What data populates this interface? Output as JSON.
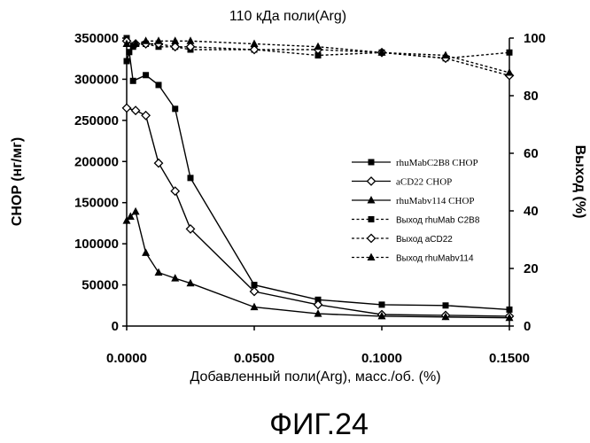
{
  "chart_data": {
    "type": "line",
    "title": "110 кДа поли(Arg)",
    "xlabel": "Добавленный поли(Arg), масс./об. (%)",
    "ylabel_left": "CHOP (нг/мг)",
    "ylabel_right": "Выход (%)",
    "xlim": [
      0,
      0.15
    ],
    "ylim_left": [
      0,
      350000
    ],
    "ylim_right": [
      0,
      100
    ],
    "x_ticks": [
      "0.0000",
      "0.0500",
      "0.1000",
      "0.1500"
    ],
    "y_left_ticks": [
      "0",
      "50000",
      "100000",
      "150000",
      "200000",
      "250000",
      "300000",
      "350000"
    ],
    "y_right_ticks": [
      "0",
      "20",
      "40",
      "60",
      "80",
      "100"
    ],
    "legend_position": "right",
    "grid": false,
    "series": [
      {
        "name": "rhuMabC2B8 CHOP",
        "axis": "left",
        "marker": "square",
        "line": "solid",
        "x": [
          0,
          0.001,
          0.0025,
          0.0075,
          0.0125,
          0.019,
          0.025,
          0.05,
          0.075,
          0.1,
          0.125,
          0.15
        ],
        "y": [
          322000,
          333000,
          298000,
          305000,
          293000,
          264000,
          180000,
          50000,
          32000,
          26000,
          25000,
          20000
        ]
      },
      {
        "name": "aCD22 CHOP",
        "axis": "left",
        "marker": "diamond",
        "line": "solid",
        "x": [
          0,
          0.0035,
          0.0075,
          0.0125,
          0.019,
          0.025,
          0.05,
          0.075,
          0.1,
          0.125,
          0.15
        ],
        "y": [
          265000,
          262000,
          256000,
          198000,
          164000,
          118000,
          42000,
          26000,
          14000,
          13000,
          12000
        ]
      },
      {
        "name": "rhuMabv114 CHOP",
        "axis": "left",
        "marker": "triangle",
        "line": "solid",
        "x": [
          0,
          0.0015,
          0.0035,
          0.0075,
          0.0125,
          0.019,
          0.025,
          0.05,
          0.075,
          0.1,
          0.125,
          0.15
        ],
        "y": [
          128000,
          133000,
          139000,
          89000,
          65000,
          58000,
          52000,
          23000,
          15000,
          12000,
          11000,
          10000
        ]
      },
      {
        "name": "Выход rhuMab C2B8",
        "axis": "right",
        "marker": "square",
        "line": "dashed",
        "x": [
          0,
          0.0025,
          0.0075,
          0.0125,
          0.019,
          0.025,
          0.05,
          0.075,
          0.1,
          0.125,
          0.15
        ],
        "y": [
          100,
          97,
          98,
          97,
          97,
          96,
          96,
          94,
          95,
          93,
          95
        ]
      },
      {
        "name": "Выход aCD22",
        "axis": "right",
        "marker": "diamond",
        "line": "dashed",
        "x": [
          0,
          0.0035,
          0.0075,
          0.0125,
          0.019,
          0.025,
          0.05,
          0.075,
          0.1,
          0.125,
          0.15
        ],
        "y": [
          99,
          98,
          98,
          98,
          97,
          97,
          96,
          96,
          95,
          93,
          87
        ]
      },
      {
        "name": "Выход rhuMabv114",
        "axis": "right",
        "marker": "triangle",
        "line": "dashed",
        "x": [
          0,
          0.0035,
          0.0075,
          0.0125,
          0.019,
          0.025,
          0.05,
          0.075,
          0.1,
          0.125,
          0.15
        ],
        "y": [
          98,
          98,
          99,
          99,
          99,
          99,
          98,
          97,
          95,
          94,
          88
        ]
      }
    ]
  },
  "caption": "ФИГ.24"
}
